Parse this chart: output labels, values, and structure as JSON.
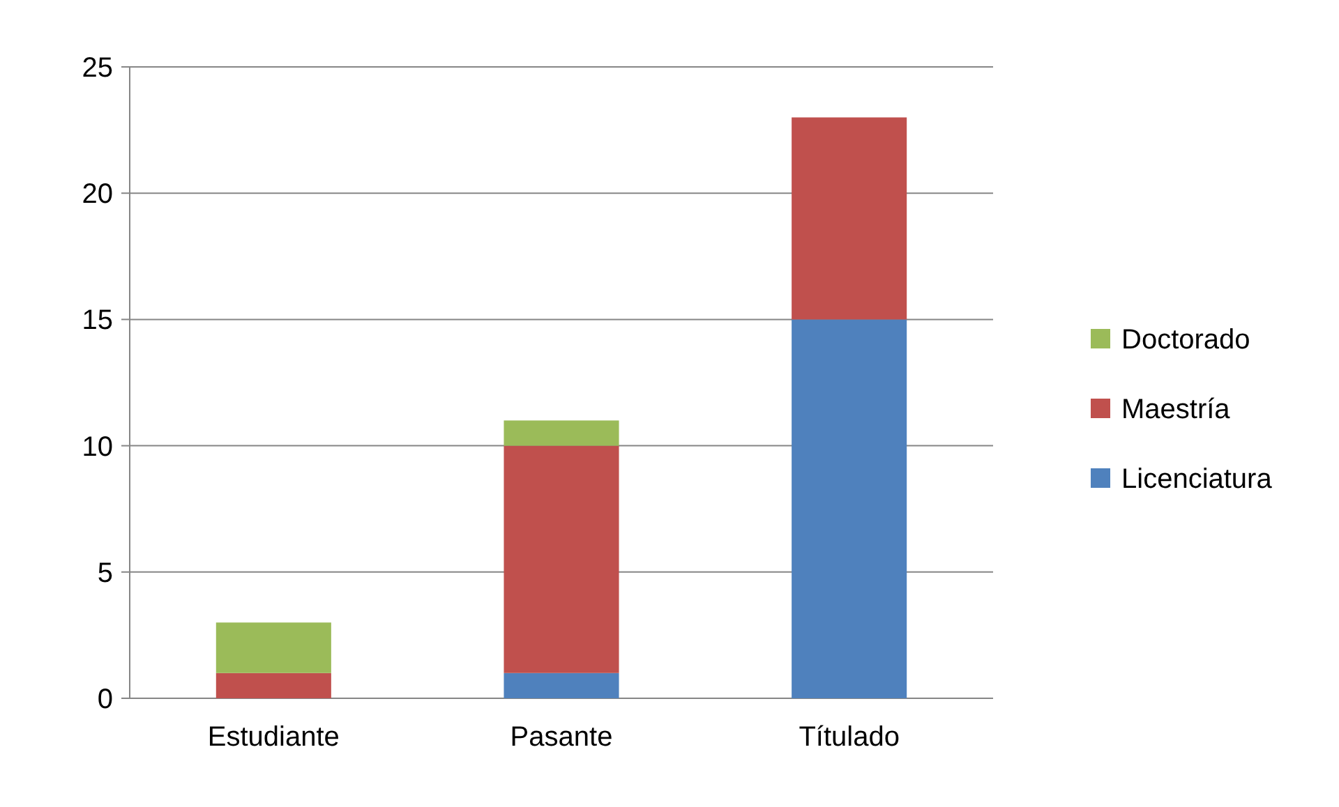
{
  "chart_data": {
    "type": "bar",
    "stacked": true,
    "categories": [
      "Estudiante",
      "Pasante",
      "Títulado"
    ],
    "series": [
      {
        "name": "Licenciatura",
        "color": "#4f81bd",
        "values": [
          0,
          1,
          15
        ]
      },
      {
        "name": "Maestría",
        "color": "#c0504d",
        "values": [
          1,
          9,
          8
        ]
      },
      {
        "name": "Doctorado",
        "color": "#9bbb59",
        "values": [
          2,
          1,
          0
        ]
      }
    ],
    "ylim": [
      0,
      25
    ],
    "yticks": [
      0,
      5,
      10,
      15,
      20,
      25
    ],
    "grid": "y",
    "legend": "right"
  }
}
